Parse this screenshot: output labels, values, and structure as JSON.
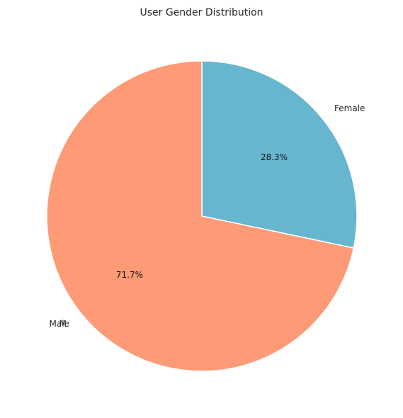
{
  "chart_data": {
    "type": "pie",
    "title": "User Gender Distribution",
    "categories": [
      "Female",
      "Male"
    ],
    "values": [
      28.3,
      71.7
    ],
    "value_labels": [
      "28.3%",
      "71.7%"
    ],
    "colors": [
      "#67b6cf",
      "#fe9a76"
    ],
    "legend": "none",
    "extra_label": "M"
  }
}
